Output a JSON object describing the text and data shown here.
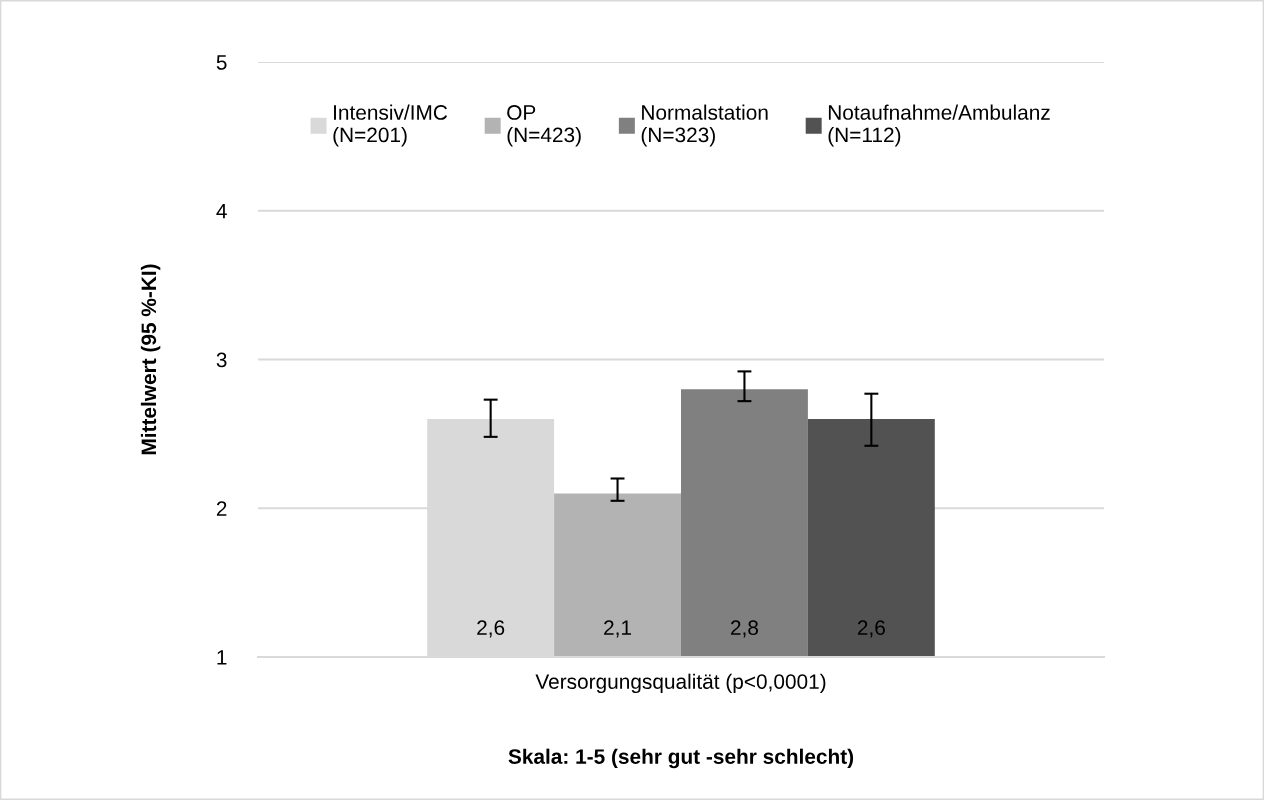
{
  "chart_data": {
    "type": "bar",
    "xlabel": "Skala: 1-5 (sehr gut -sehr schlecht)",
    "ylabel": "Mittelwert (95 %-KI)",
    "categories": [
      "Versorgungsqualität (p<0,0001)"
    ],
    "series": [
      {
        "name": "Intensiv/IMC\n(N=201)",
        "color": "#d9d9d9",
        "values": [
          2.6
        ],
        "value_labels": [
          "2,6"
        ],
        "errors": [
          [
            2.48,
            2.73
          ]
        ]
      },
      {
        "name": "OP\n(N=423)",
        "color": "#b3b3b3",
        "values": [
          2.1
        ],
        "value_labels": [
          "2,1"
        ],
        "errors": [
          [
            2.05,
            2.2
          ]
        ]
      },
      {
        "name": "Normalstation\n(N=323)",
        "color": "#808080",
        "values": [
          2.8
        ],
        "value_labels": [
          "2,8"
        ],
        "errors": [
          [
            2.72,
            2.92
          ]
        ]
      },
      {
        "name": "Notaufnahme/Ambulanz\n(N=112)",
        "color": "#525252",
        "values": [
          2.6
        ],
        "value_labels": [
          "2,6"
        ],
        "errors": [
          [
            2.42,
            2.77
          ]
        ]
      }
    ],
    "ylim": [
      1,
      5
    ],
    "yticks": [
      1,
      2,
      3,
      4,
      5
    ],
    "grid": "y",
    "legend": "top"
  }
}
